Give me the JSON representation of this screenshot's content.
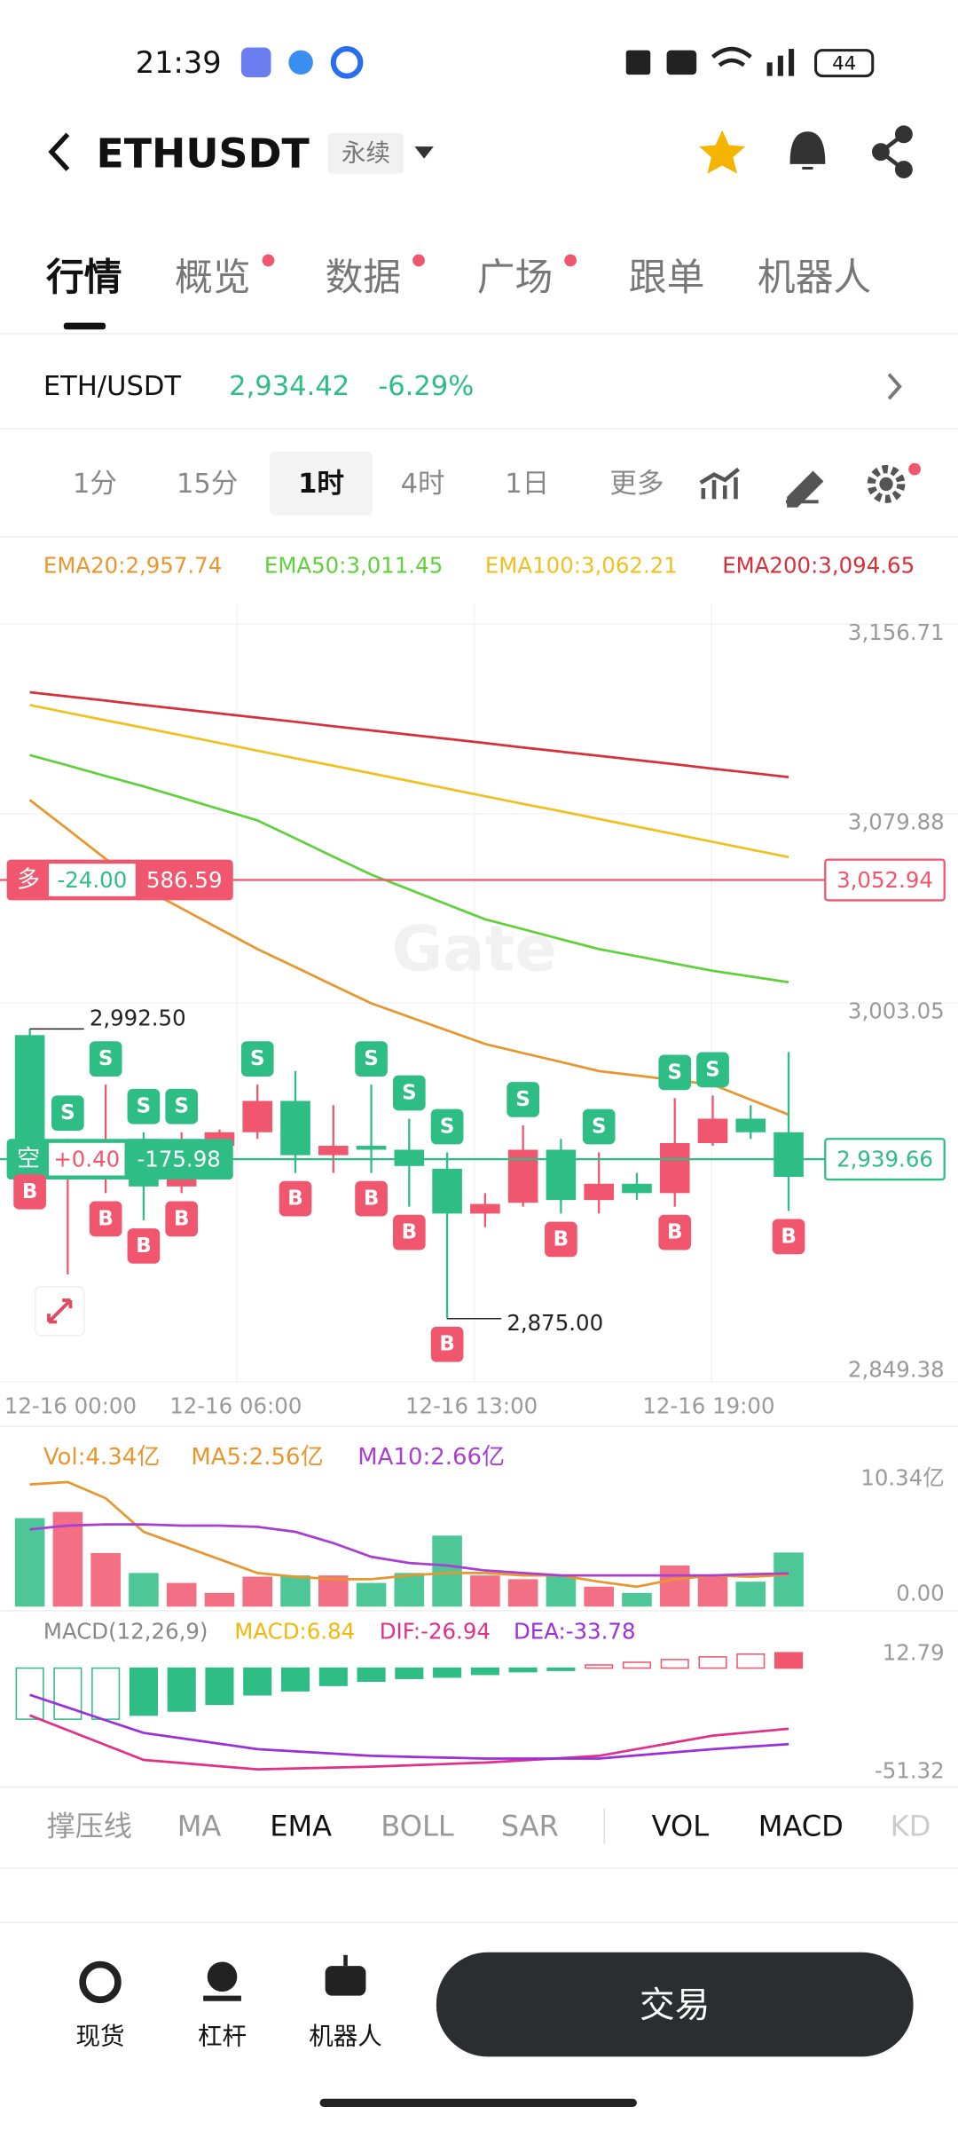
{
  "status_bar": {
    "time": "21:39",
    "battery": "44"
  },
  "header": {
    "symbol": "ETHUSDT",
    "tag": "永续"
  },
  "tabs": [
    "行情",
    "概览",
    "数据",
    "广场",
    "跟单",
    "机器人"
  ],
  "ticker": {
    "pair": "ETH/USDT",
    "price": "2,934.42",
    "change": "-6.29%"
  },
  "intervals": [
    "1分",
    "15分",
    "1时",
    "4时",
    "1日",
    "更多"
  ],
  "kline": {
    "up_color": "#f0566e",
    "down_color": "#2ebd85",
    "ylim": [
      2848.9,
      3164.6
    ],
    "yticks": [
      {
        "value": 3156.71,
        "label": "3,156.71"
      },
      {
        "value": 3079.88,
        "label": "3,079.88"
      },
      {
        "value": 3003.05,
        "label": "3,003.05"
      },
      {
        "value": 2849.38,
        "label": "2,849.38"
      }
    ],
    "x_labels": [
      "12-16 00:00",
      "12-16 06:00",
      "12-16 13:00",
      "12-16 19:00"
    ],
    "ema": [
      {
        "legend": "EMA20:2,957.74",
        "color": "#e8962e",
        "values": [
          3085.4,
          3073.5,
          3061.5,
          3049.6,
          3041.4,
          3033.1,
          3024.9,
          3017.6,
          3010.2,
          3002.9,
          2997.4,
          2991.9,
          2986.4,
          2982.7,
          2979.1,
          2975.4,
          2973.6,
          2971.7,
          2969.9,
          2963.8,
          2957.74
        ]
      },
      {
        "legend": "EMA50:3,011.45",
        "color": "#5fd13a",
        "values": [
          3103.6,
          3099.4,
          3095.1,
          3090.9,
          3086.3,
          3081.7,
          3077.1,
          3069.8,
          3062.4,
          3055.1,
          3049.1,
          3043.0,
          3037.0,
          3033.0,
          3028.9,
          3024.9,
          3022.0,
          3019.0,
          3016.1,
          3013.8,
          3011.45
        ]
      },
      {
        "legend": "EMA100:3,062.21",
        "color": "#f0c020",
        "values": [
          3123.9,
          3120.8,
          3117.7,
          3114.7,
          3111.6,
          3108.5,
          3105.4,
          3102.3,
          3099.3,
          3096.2,
          3093.1,
          3090.0,
          3086.9,
          3083.8,
          3080.8,
          3077.7,
          3074.6,
          3071.5,
          3068.4,
          3065.3,
          3062.21
        ]
      },
      {
        "legend": "EMA200:3,094.65",
        "color": "#d7303a",
        "values": [
          3129.1,
          3127.4,
          3125.7,
          3123.9,
          3122.2,
          3120.5,
          3118.8,
          3117.1,
          3115.3,
          3113.6,
          3111.9,
          3110.2,
          3108.5,
          3106.7,
          3105.0,
          3103.3,
          3101.6,
          3099.9,
          3098.1,
          3096.4,
          3094.65
        ]
      }
    ],
    "candles": [
      [
        2990,
        2992.5,
        2936.9,
        2942.4
      ],
      [
        2942.4,
        2947.9,
        2892.9,
        2945.1
      ],
      [
        2943.5,
        2969.9,
        2925.9,
        2946.8
      ],
      [
        2947.9,
        2950.6,
        2914.9,
        2928.6
      ],
      [
        2928.6,
        2950.6,
        2925.9,
        2936.9
      ],
      [
        2945.1,
        2951.7,
        2943.5,
        2950.6
      ],
      [
        2950.6,
        2969.9,
        2947.9,
        2963.3
      ],
      [
        2963.3,
        2975.4,
        2934.1,
        2941.3
      ],
      [
        2941.3,
        2961.6,
        2934.1,
        2945.1
      ],
      [
        2945.1,
        2969.9,
        2934.1,
        2943.5
      ],
      [
        2943.5,
        2956.1,
        2920.4,
        2936.9
      ],
      [
        2935.8,
        2942.4,
        2875,
        2917.6
      ],
      [
        2917.6,
        2925.9,
        2912.1,
        2921.5
      ],
      [
        2922.0,
        2953.4,
        2920.4,
        2943.5
      ],
      [
        2943.5,
        2947.9,
        2917.6,
        2923.1
      ],
      [
        2923.1,
        2942.4,
        2917.6,
        2929.7
      ],
      [
        2929.7,
        2934.1,
        2923.1,
        2925.9
      ],
      [
        2925.9,
        2964.4,
        2920.4,
        2946.2
      ],
      [
        2946.2,
        2965.5,
        2945.1,
        2956.1
      ],
      [
        2956.1,
        2961.6,
        2947.9,
        2950.6
      ],
      [
        2950.6,
        2983.1,
        2918.7,
        2932.5
      ]
    ],
    "sell_marks": [
      null,
      "S",
      "S",
      "S",
      "S",
      null,
      "S",
      null,
      null,
      "S",
      "S",
      "S",
      null,
      "S",
      null,
      "S",
      null,
      "S",
      "S",
      null,
      null
    ],
    "buy_marks": [
      "B",
      null,
      "B",
      "B",
      "B",
      null,
      null,
      "B",
      null,
      "B",
      "B",
      "B",
      null,
      null,
      "B",
      null,
      null,
      "B",
      null,
      null,
      "B"
    ],
    "high_label": {
      "value": 2992.5,
      "label": "2,992.50"
    },
    "low_label": {
      "value": 2875,
      "label": "2,875.00"
    },
    "long_position": {
      "side": "多",
      "pnl": "-24.00",
      "size": "586.59",
      "price": {
        "value": 3052.94,
        "label": "3,052.94"
      }
    },
    "short_position": {
      "side": "空",
      "pnl": "+0.40",
      "size": "-175.98"
    },
    "last_price": {
      "value": 2939.66,
      "label": "2,939.66"
    },
    "watermark": "Gate"
  },
  "volume": {
    "legend": "Vol:4.34亿",
    "ylim": [
      0,
      13.6
    ],
    "yticks": [
      {
        "value": 10.34,
        "label": "10.34亿"
      },
      {
        "value": 0,
        "label": "0.00"
      }
    ],
    "values": [
      7.1,
      7.6,
      4.3,
      2.7,
      1.9,
      1.1,
      2.4,
      2.5,
      2.5,
      1.9,
      2.7,
      5.7,
      2.5,
      2.2,
      2.5,
      1.6,
      1.1,
      3.3,
      2.5,
      2.0,
      4.34
    ],
    "ma": [
      {
        "legend": "MA5:2.56亿",
        "color": "#e8962e",
        "values": [
          9.8,
          10.0,
          8.7,
          6.0,
          4.9,
          3.8,
          2.7,
          2.4,
          2.2,
          2.2,
          2.5,
          2.7,
          2.7,
          2.5,
          2.5,
          2.0,
          1.6,
          2.2,
          2.5,
          2.4,
          2.56
        ]
      },
      {
        "legend": "MA10:2.66亿",
        "color": "#a93fd0",
        "values": [
          6.2,
          6.5,
          6.6,
          6.6,
          6.5,
          6.5,
          6.4,
          6.0,
          5.1,
          4.0,
          3.5,
          3.3,
          2.9,
          2.7,
          2.5,
          2.5,
          2.5,
          2.5,
          2.5,
          2.6,
          2.66
        ]
      }
    ]
  },
  "macd": {
    "title": "MACD(12,26,9)",
    "legend": "MACD:6.84",
    "ylim": [
      -51.6,
      21.3
    ],
    "yticks": [
      12.79,
      -51.32
    ],
    "values": [
      -22.7,
      -22.7,
      -22.7,
      -20.9,
      -19.1,
      -16.1,
      -11.9,
      -10.1,
      -7.7,
      -5.8,
      -4.6,
      -4.0,
      -2.8,
      -1.6,
      -1.0,
      1.4,
      2.6,
      3.8,
      5.0,
      6.2,
      6.84
    ],
    "lines": [
      {
        "legend": "DIF:-26.94",
        "color": "#e0308a",
        "values": [
          -21.0,
          -27.6,
          -34.2,
          -40.8,
          -42.2,
          -43.6,
          -45.0,
          -44.6,
          -44.2,
          -43.8,
          -43.2,
          -42.6,
          -42.0,
          -41.0,
          -40.0,
          -39.0,
          -36.0,
          -33.0,
          -30.0,
          -28.5,
          -26.94
        ]
      },
      {
        "legend": "DEA:-33.78",
        "color": "#9b30d9",
        "values": [
          -11.9,
          -17.5,
          -23.2,
          -28.8,
          -31.2,
          -33.6,
          -36.0,
          -37.0,
          -38.0,
          -39.0,
          -39.4,
          -39.8,
          -40.2,
          -40.2,
          -40.2,
          -40.2,
          -38.8,
          -37.4,
          -36.0,
          -34.9,
          -33.78
        ]
      }
    ]
  },
  "indicator_tabs": [
    "撑压线",
    "MA",
    "EMA",
    "BOLL",
    "SAR",
    "VOL",
    "MACD",
    "KD"
  ],
  "bottom_nav": [
    "现货",
    "杠杆",
    "机器人"
  ],
  "trade_button": "交易"
}
